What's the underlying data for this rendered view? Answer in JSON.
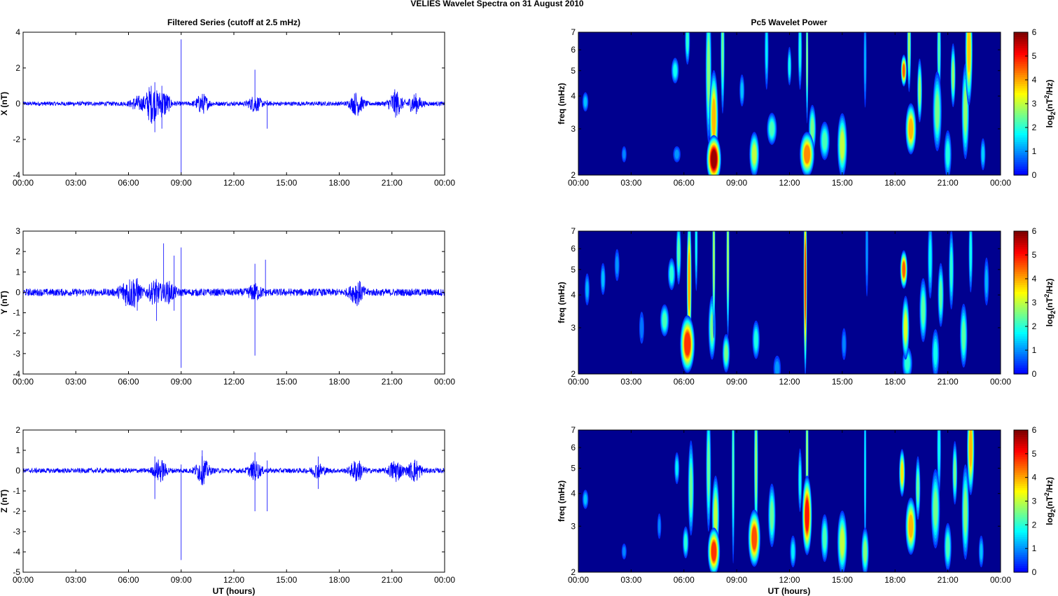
{
  "figure": {
    "suptitle": "VELIES Wavelet Spectra on 31 August    2010",
    "left_title": "Filtered Series (cutoff at 2.5 mHz)",
    "right_title": "Pc5 Wavelet Power",
    "xlabel": "UT (hours)",
    "colorbar_label": "log2(nT^2/Hz)",
    "colormap": "jet",
    "trace_color": "#0000ff",
    "background_color": "#00008f"
  },
  "chart_data": [
    {
      "type": "line",
      "component": "X",
      "ylabel": "X (nT)",
      "xlim": [
        0,
        24
      ],
      "ylim": [
        -4,
        4
      ],
      "xticks": [
        "00:00",
        "03:00",
        "06:00",
        "09:00",
        "12:00",
        "15:00",
        "18:00",
        "21:00",
        "00:00"
      ],
      "yticks": [
        -4,
        -2,
        0,
        2,
        4
      ],
      "series": [
        {
          "baseline_amplitude": 0.12,
          "bursts": [
            [
              6.5,
              0.35
            ],
            [
              7.3,
              1.0
            ],
            [
              8.0,
              0.7
            ],
            [
              10.2,
              0.5
            ],
            [
              13.2,
              0.4
            ],
            [
              19.0,
              0.6
            ],
            [
              21.2,
              0.7
            ],
            [
              22.3,
              0.5
            ]
          ],
          "spikes": [
            [
              7.5,
              1.2,
              -1.6
            ],
            [
              7.9,
              1.0,
              -1.4
            ],
            [
              9.0,
              3.6,
              -3.9
            ],
            [
              13.2,
              1.9,
              -0.3
            ],
            [
              13.9,
              0.2,
              -1.4
            ]
          ]
        }
      ]
    },
    {
      "type": "line",
      "component": "Y",
      "ylabel": "Y (nT)",
      "xlim": [
        0,
        24
      ],
      "ylim": [
        -4,
        3
      ],
      "xticks": [
        "00:00",
        "03:00",
        "06:00",
        "09:00",
        "12:00",
        "15:00",
        "18:00",
        "21:00",
        "00:00"
      ],
      "yticks": [
        -4,
        -3,
        -2,
        -1,
        0,
        1,
        2,
        3
      ],
      "series": [
        {
          "baseline_amplitude": 0.18,
          "bursts": [
            [
              5.8,
              0.4
            ],
            [
              6.3,
              0.6
            ],
            [
              7.5,
              0.5
            ],
            [
              8.3,
              0.4
            ],
            [
              13.2,
              0.3
            ],
            [
              19.0,
              0.5
            ]
          ],
          "spikes": [
            [
              6.5,
              0.7,
              -0.9
            ],
            [
              7.6,
              0.3,
              -1.4
            ],
            [
              8.0,
              2.4,
              -0.3
            ],
            [
              8.6,
              1.8,
              -0.9
            ],
            [
              9.0,
              2.2,
              -3.7
            ],
            [
              13.2,
              1.4,
              -3.1
            ],
            [
              13.8,
              1.6,
              -0.2
            ]
          ]
        }
      ]
    },
    {
      "type": "line",
      "component": "Z",
      "ylabel": "Z (nT)",
      "xlim": [
        0,
        24
      ],
      "ylim": [
        -5,
        2
      ],
      "xticks": [
        "00:00",
        "03:00",
        "06:00",
        "09:00",
        "12:00",
        "15:00",
        "18:00",
        "21:00",
        "00:00"
      ],
      "yticks": [
        -5,
        -4,
        -3,
        -2,
        -1,
        0,
        1,
        2
      ],
      "series": [
        {
          "baseline_amplitude": 0.12,
          "bursts": [
            [
              7.8,
              0.5
            ],
            [
              10.2,
              0.6
            ],
            [
              13.2,
              0.4
            ],
            [
              16.8,
              0.3
            ],
            [
              19.0,
              0.5
            ],
            [
              21.2,
              0.5
            ],
            [
              22.3,
              0.5
            ]
          ],
          "spikes": [
            [
              7.5,
              0.7,
              -1.4
            ],
            [
              9.0,
              0.3,
              -4.4
            ],
            [
              10.2,
              1.0,
              -0.5
            ],
            [
              13.2,
              0.9,
              -2.0
            ],
            [
              13.9,
              0.5,
              -2.0
            ],
            [
              16.8,
              0.7,
              -0.9
            ]
          ]
        }
      ]
    },
    {
      "type": "heatmap",
      "component": "X",
      "ylabel": "freq (mHz)",
      "xlim": [
        0,
        24
      ],
      "ylim": [
        2,
        7
      ],
      "yscale": "log",
      "xticks": [
        "00:00",
        "03:00",
        "06:00",
        "09:00",
        "12:00",
        "15:00",
        "18:00",
        "21:00",
        "00:00"
      ],
      "yticks": [
        2,
        3,
        4,
        5,
        6,
        7
      ],
      "clim": [
        0,
        6
      ],
      "cbar_ticks": [
        0,
        1,
        2,
        3,
        4,
        5,
        6
      ],
      "features": [
        [
          0.4,
          3.8,
          0.12,
          0.06,
          1.3
        ],
        [
          2.6,
          2.4,
          0.1,
          0.05,
          0.9
        ],
        [
          5.5,
          5.0,
          0.15,
          0.08,
          1.8
        ],
        [
          5.6,
          2.4,
          0.15,
          0.05,
          1.0
        ],
        [
          6.2,
          6.5,
          0.1,
          0.15,
          2.0
        ],
        [
          7.4,
          5.0,
          0.12,
          0.45,
          2.6
        ],
        [
          7.7,
          2.3,
          0.3,
          0.15,
          5.8
        ],
        [
          7.7,
          3.3,
          0.18,
          0.3,
          3.9
        ],
        [
          8.2,
          6.0,
          0.08,
          0.4,
          2.4
        ],
        [
          9.3,
          4.2,
          0.1,
          0.1,
          1.3
        ],
        [
          10.0,
          2.4,
          0.2,
          0.14,
          3.0
        ],
        [
          10.7,
          6.0,
          0.08,
          0.25,
          1.6
        ],
        [
          11.0,
          3.0,
          0.2,
          0.1,
          2.2
        ],
        [
          12.0,
          5.2,
          0.08,
          0.12,
          1.8
        ],
        [
          12.6,
          6.0,
          0.08,
          0.25,
          1.9
        ],
        [
          13.0,
          2.4,
          0.3,
          0.14,
          4.2
        ],
        [
          13.0,
          5.5,
          0.05,
          0.4,
          2.6
        ],
        [
          13.3,
          3.0,
          0.15,
          0.15,
          2.5
        ],
        [
          14.0,
          2.7,
          0.2,
          0.12,
          2.2
        ],
        [
          15.0,
          2.6,
          0.2,
          0.2,
          3.0
        ],
        [
          16.3,
          5.5,
          0.06,
          0.3,
          1.2
        ],
        [
          18.5,
          5.0,
          0.12,
          0.1,
          4.5
        ],
        [
          18.9,
          3.0,
          0.22,
          0.16,
          3.9
        ],
        [
          18.8,
          6.3,
          0.08,
          0.3,
          2.8
        ],
        [
          19.4,
          4.2,
          0.1,
          0.2,
          2.7
        ],
        [
          20.4,
          3.5,
          0.18,
          0.25,
          2.5
        ],
        [
          20.5,
          6.0,
          0.08,
          0.3,
          2.3
        ],
        [
          21.0,
          2.4,
          0.15,
          0.15,
          1.9
        ],
        [
          21.3,
          4.8,
          0.1,
          0.2,
          2.7
        ],
        [
          22.2,
          6.0,
          0.15,
          0.35,
          3.8
        ],
        [
          22.0,
          3.5,
          0.15,
          0.3,
          2.7
        ],
        [
          23.0,
          2.4,
          0.1,
          0.1,
          1.4
        ]
      ]
    },
    {
      "type": "heatmap",
      "component": "Y",
      "ylabel": "freq (mHz)",
      "xlim": [
        0,
        24
      ],
      "ylim": [
        2,
        7
      ],
      "yscale": "log",
      "xticks": [
        "00:00",
        "03:00",
        "06:00",
        "09:00",
        "12:00",
        "15:00",
        "18:00",
        "21:00",
        "00:00"
      ],
      "yticks": [
        2,
        3,
        4,
        5,
        6,
        7
      ],
      "clim": [
        0,
        6
      ],
      "cbar_ticks": [
        0,
        1,
        2,
        3,
        4,
        5,
        6
      ],
      "features": [
        [
          0.5,
          4.2,
          0.1,
          0.1,
          1.2
        ],
        [
          1.4,
          4.6,
          0.1,
          0.1,
          1.3
        ],
        [
          2.2,
          5.2,
          0.1,
          0.1,
          1.0
        ],
        [
          3.6,
          3.0,
          0.1,
          0.1,
          0.8
        ],
        [
          4.9,
          3.2,
          0.18,
          0.1,
          2.2
        ],
        [
          5.3,
          4.8,
          0.15,
          0.1,
          2.0
        ],
        [
          5.7,
          5.8,
          0.1,
          0.2,
          2.3
        ],
        [
          6.2,
          2.6,
          0.3,
          0.18,
          4.8
        ],
        [
          6.3,
          4.5,
          0.1,
          0.45,
          4.0
        ],
        [
          6.7,
          6.3,
          0.06,
          0.3,
          1.8
        ],
        [
          7.6,
          3.0,
          0.15,
          0.2,
          2.5
        ],
        [
          7.7,
          5.5,
          0.06,
          0.5,
          2.9
        ],
        [
          8.4,
          2.4,
          0.15,
          0.12,
          2.5
        ],
        [
          8.5,
          5.5,
          0.06,
          0.5,
          2.9
        ],
        [
          10.1,
          2.7,
          0.15,
          0.12,
          1.9
        ],
        [
          11.3,
          2.1,
          0.15,
          0.08,
          1.0
        ],
        [
          12.9,
          4.5,
          0.07,
          0.6,
          4.7
        ],
        [
          15.1,
          2.6,
          0.1,
          0.1,
          0.9
        ],
        [
          16.4,
          6.0,
          0.06,
          0.3,
          1.0
        ],
        [
          18.5,
          5.0,
          0.15,
          0.12,
          4.5
        ],
        [
          18.6,
          3.0,
          0.15,
          0.2,
          3.2
        ],
        [
          18.7,
          2.2,
          0.2,
          0.1,
          2.0
        ],
        [
          19.6,
          3.5,
          0.15,
          0.2,
          2.3
        ],
        [
          20.0,
          5.5,
          0.1,
          0.25,
          1.7
        ],
        [
          20.6,
          4.0,
          0.12,
          0.2,
          2.3
        ],
        [
          20.3,
          2.4,
          0.15,
          0.15,
          1.8
        ],
        [
          21.2,
          5.0,
          0.1,
          0.25,
          2.0
        ],
        [
          21.9,
          2.8,
          0.15,
          0.2,
          2.3
        ],
        [
          22.3,
          5.8,
          0.08,
          0.25,
          1.8
        ],
        [
          23.2,
          4.5,
          0.1,
          0.15,
          1.2
        ]
      ]
    },
    {
      "type": "heatmap",
      "component": "Z",
      "ylabel": "freq (mHz)",
      "xlim": [
        0,
        24
      ],
      "ylim": [
        2,
        7
      ],
      "yscale": "log",
      "xticks": [
        "00:00",
        "03:00",
        "06:00",
        "09:00",
        "12:00",
        "15:00",
        "18:00",
        "21:00",
        "00:00"
      ],
      "yticks": [
        2,
        3,
        4,
        5,
        6,
        7
      ],
      "clim": [
        0,
        6
      ],
      "cbar_ticks": [
        0,
        1,
        2,
        3,
        4,
        5,
        6
      ],
      "features": [
        [
          0.4,
          3.8,
          0.12,
          0.06,
          1.3
        ],
        [
          2.6,
          2.4,
          0.1,
          0.05,
          0.9
        ],
        [
          4.6,
          3.0,
          0.08,
          0.08,
          0.9
        ],
        [
          5.6,
          5.0,
          0.1,
          0.1,
          1.6
        ],
        [
          6.1,
          2.6,
          0.12,
          0.1,
          2.0
        ],
        [
          6.4,
          4.2,
          0.12,
          0.3,
          2.4
        ],
        [
          7.4,
          5.0,
          0.1,
          0.4,
          2.4
        ],
        [
          7.7,
          2.4,
          0.25,
          0.15,
          4.8
        ],
        [
          7.8,
          3.3,
          0.15,
          0.25,
          3.0
        ],
        [
          8.8,
          5.0,
          0.06,
          0.6,
          2.2
        ],
        [
          10.0,
          2.7,
          0.25,
          0.18,
          4.6
        ],
        [
          10.1,
          5.2,
          0.08,
          0.5,
          2.7
        ],
        [
          11.0,
          3.3,
          0.15,
          0.2,
          2.4
        ],
        [
          12.2,
          2.4,
          0.12,
          0.1,
          1.6
        ],
        [
          12.6,
          4.5,
          0.08,
          0.2,
          1.8
        ],
        [
          13.0,
          3.3,
          0.2,
          0.25,
          5.0
        ],
        [
          13.0,
          5.5,
          0.06,
          0.5,
          2.8
        ],
        [
          14.0,
          2.7,
          0.15,
          0.15,
          2.2
        ],
        [
          15.0,
          2.6,
          0.2,
          0.2,
          3.0
        ],
        [
          16.3,
          2.4,
          0.15,
          0.15,
          2.6
        ],
        [
          16.3,
          5.0,
          0.05,
          0.6,
          1.6
        ],
        [
          18.4,
          4.8,
          0.12,
          0.15,
          3.6
        ],
        [
          18.9,
          3.0,
          0.22,
          0.18,
          3.9
        ],
        [
          19.3,
          4.2,
          0.1,
          0.2,
          2.4
        ],
        [
          20.3,
          3.5,
          0.18,
          0.25,
          2.5
        ],
        [
          20.5,
          6.0,
          0.08,
          0.3,
          1.8
        ],
        [
          21.0,
          2.5,
          0.15,
          0.15,
          2.2
        ],
        [
          21.4,
          4.8,
          0.1,
          0.2,
          2.5
        ],
        [
          22.3,
          6.0,
          0.15,
          0.3,
          3.9
        ],
        [
          22.0,
          3.4,
          0.15,
          0.3,
          2.6
        ],
        [
          22.9,
          2.4,
          0.1,
          0.1,
          1.3
        ]
      ]
    }
  ]
}
